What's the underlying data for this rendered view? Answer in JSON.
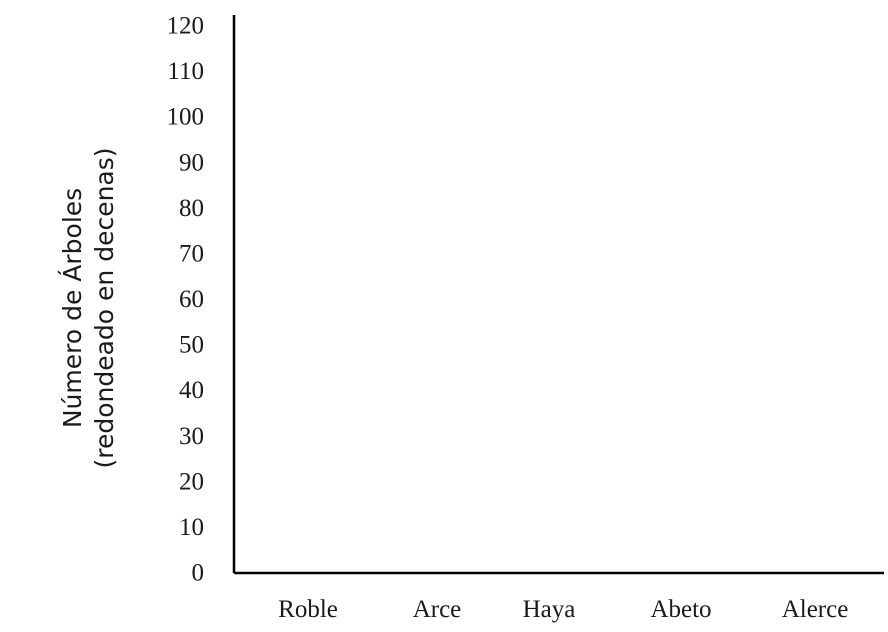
{
  "chart_data": {
    "type": "bar",
    "title": "",
    "xlabel": "",
    "ylabel_lines": [
      "Número de Árboles",
      "(redondeado en decenas)"
    ],
    "categories": [
      "Roble",
      "Arce",
      "Haya",
      "Abeto",
      "Alerce"
    ],
    "values": [
      null,
      null,
      null,
      null,
      null
    ],
    "ylim": [
      0,
      120
    ],
    "yticks": [
      0,
      10,
      20,
      30,
      40,
      50,
      60,
      70,
      80,
      90,
      100,
      110,
      120
    ],
    "grid": false,
    "legend": "none"
  }
}
